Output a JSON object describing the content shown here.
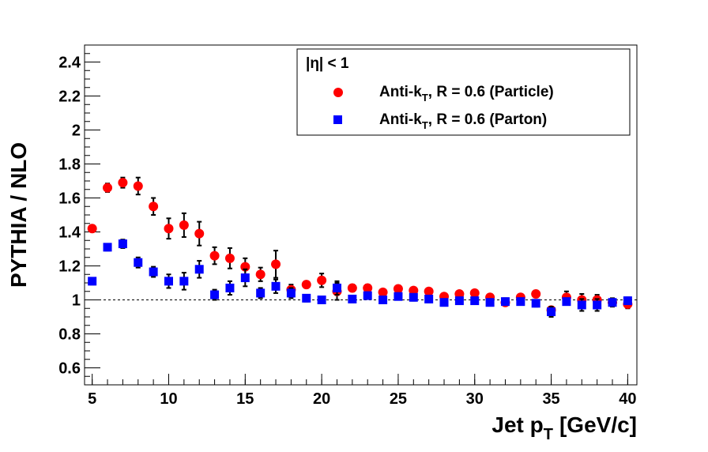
{
  "chart_data": {
    "type": "scatter",
    "xlabel": "Jet p",
    "xlabel_sub": "T",
    "xlabel_unit": "[GeV/c]",
    "ylabel": "PYTHIA / NLO",
    "xlim": [
      4.5,
      40.6
    ],
    "ylim": [
      0.5,
      2.5
    ],
    "x_ticks": [
      5,
      10,
      15,
      20,
      25,
      30,
      35,
      40
    ],
    "y_ticks": [
      0.6,
      0.8,
      1,
      1.2,
      1.4,
      1.6,
      1.8,
      2,
      2.2,
      2.4
    ],
    "x_tick_labels": [
      "5",
      "10",
      "15",
      "20",
      "25",
      "30",
      "35",
      "40"
    ],
    "y_tick_labels": [
      "0.6",
      "0.8",
      "1",
      "1.2",
      "1.4",
      "1.6",
      "1.8",
      "2",
      "2.2",
      "2.4"
    ],
    "reference_line": 1,
    "grid": false,
    "legend_position": "top-right",
    "legend": {
      "header": "|η| < 1",
      "entries": [
        {
          "prefix": "Anti-k",
          "sub": "T",
          "suffix": ", R = 0.6 (Particle)",
          "marker": "circle",
          "color": "#ff0000"
        },
        {
          "prefix": "Anti-k",
          "sub": "T",
          "suffix": ", R = 0.6 (Parton)",
          "marker": "square",
          "color": "#0000ff"
        }
      ]
    },
    "series": [
      {
        "marker": "circle",
        "color": "#ff0000",
        "x": [
          5,
          6,
          7,
          8,
          9,
          10,
          11,
          12,
          13,
          14,
          15,
          16,
          17,
          18,
          19,
          20,
          21,
          22,
          23,
          24,
          25,
          26,
          27,
          28,
          29,
          30,
          31,
          32,
          33,
          34,
          35,
          36,
          37,
          38,
          39,
          40
        ],
        "y": [
          1.42,
          1.66,
          1.69,
          1.67,
          1.55,
          1.42,
          1.44,
          1.39,
          1.26,
          1.245,
          1.195,
          1.15,
          1.21,
          1.06,
          1.09,
          1.115,
          1.05,
          1.07,
          1.07,
          1.045,
          1.065,
          1.055,
          1.05,
          1.02,
          1.035,
          1.04,
          1.015,
          0.985,
          1.015,
          1.035,
          0.94,
          1.015,
          1.0,
          1.0,
          0.985,
          0.975
        ],
        "err": [
          0.02,
          0.025,
          0.03,
          0.05,
          0.05,
          0.06,
          0.07,
          0.07,
          0.05,
          0.06,
          0.05,
          0.04,
          0.08,
          0.03,
          0.02,
          0.04,
          0.05,
          0.02,
          0.02,
          0.015,
          0.02,
          0.015,
          0.015,
          0.015,
          0.015,
          0.015,
          0.02,
          0.02,
          0.02,
          0.02,
          0.02,
          0.035,
          0.035,
          0.03,
          0.02,
          0.025
        ]
      },
      {
        "marker": "square",
        "color": "#0000ff",
        "x": [
          5,
          6,
          7,
          8,
          9,
          10,
          11,
          12,
          13,
          14,
          15,
          16,
          17,
          18,
          19,
          20,
          21,
          22,
          23,
          24,
          25,
          26,
          27,
          28,
          29,
          30,
          31,
          32,
          33,
          34,
          35,
          36,
          37,
          38,
          39,
          40
        ],
        "y": [
          1.11,
          1.31,
          1.33,
          1.22,
          1.165,
          1.11,
          1.11,
          1.18,
          1.03,
          1.07,
          1.13,
          1.04,
          1.08,
          1.04,
          1.01,
          1.0,
          1.07,
          1.005,
          1.025,
          1.0,
          1.02,
          1.015,
          1.005,
          0.985,
          0.995,
          0.995,
          0.985,
          0.99,
          0.99,
          0.98,
          0.93,
          0.99,
          0.97,
          0.97,
          0.985,
          0.995
        ],
        "err": [
          0.02,
          0.02,
          0.025,
          0.03,
          0.03,
          0.04,
          0.05,
          0.05,
          0.03,
          0.04,
          0.05,
          0.03,
          0.04,
          0.03,
          0.02,
          0.02,
          0.04,
          0.02,
          0.02,
          0.02,
          0.02,
          0.02,
          0.02,
          0.02,
          0.02,
          0.02,
          0.02,
          0.02,
          0.02,
          0.02,
          0.03,
          0.02,
          0.035,
          0.035,
          0.025,
          0.02
        ]
      }
    ]
  }
}
